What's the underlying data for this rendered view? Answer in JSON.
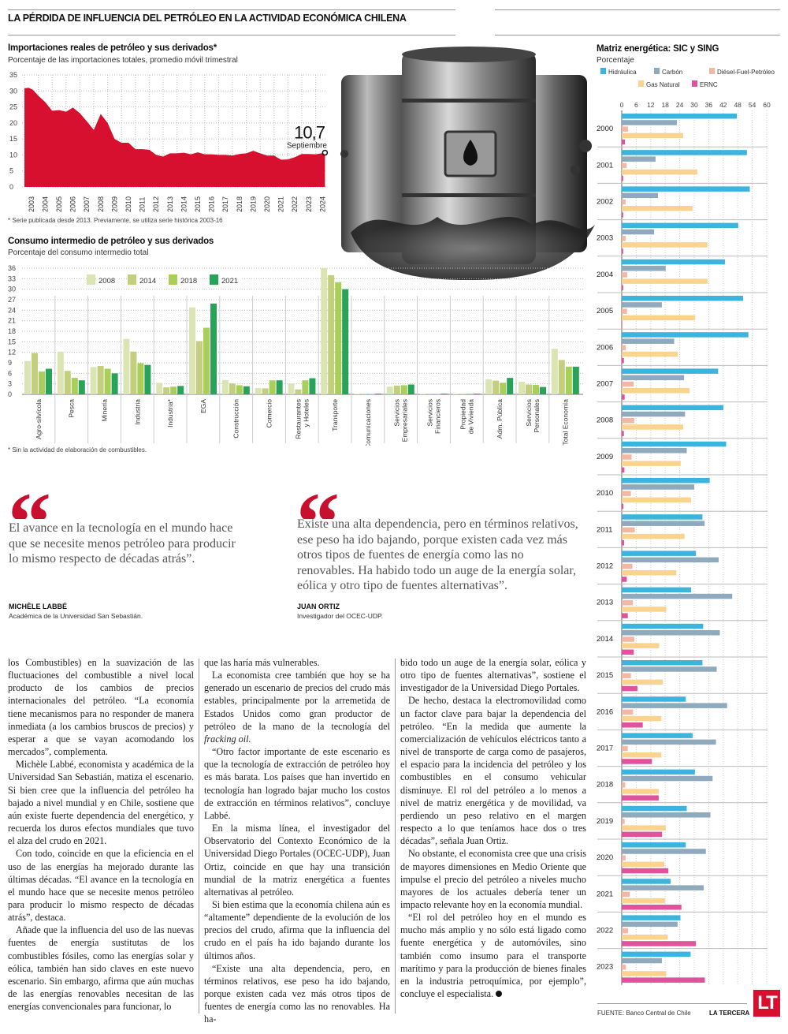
{
  "headline": "LA PÉRDIDA DE INFLUENCIA DEL PETRÓLEO EN LA ACTIVIDAD ECONÓMICA CHILENA",
  "colors": {
    "red": "#d7102f",
    "green2008": "#dbe5b3",
    "green2014": "#c3cf7c",
    "green2018": "#a9cf5a",
    "green2021": "#2aa35a",
    "hidraulica": "#3bb4de",
    "carbon": "#8fa9bd",
    "diesel": "#f3b7a5",
    "gas": "#fad38f",
    "ernc": "#e0529b"
  },
  "chart_data": [
    {
      "type": "area",
      "title": "Importaciones reales de petróleo y sus derivados*",
      "subtitle": "Porcentaje de las importaciones totales, promedio móvil trimestral",
      "ylim": [
        0,
        35
      ],
      "yticks": [
        "0",
        "5",
        "10",
        "15",
        "20",
        "25",
        "30",
        "35"
      ],
      "xticks": [
        "2003",
        "2004",
        "2005",
        "2006",
        "2007",
        "2008",
        "2009",
        "2010",
        "2011",
        "2012",
        "2013",
        "2014",
        "2015",
        "2016",
        "2017",
        "2018",
        "2019",
        "2020",
        "2021",
        "2022",
        "2023",
        "2024"
      ],
      "x": [
        2003.0,
        2003.3,
        2003.6,
        2004.0,
        2004.5,
        2005.0,
        2005.5,
        2006.0,
        2006.5,
        2007.0,
        2007.5,
        2008.0,
        2008.5,
        2009.0,
        2009.5,
        2010.0,
        2010.5,
        2011.0,
        2011.5,
        2012.0,
        2012.5,
        2013.0,
        2013.5,
        2014.0,
        2014.5,
        2015.0,
        2015.5,
        2016.0,
        2016.5,
        2017.0,
        2017.5,
        2018.0,
        2018.5,
        2019.0,
        2019.5,
        2020.0,
        2020.5,
        2021.0,
        2021.5,
        2022.0,
        2022.5,
        2023.0,
        2023.5,
        2024.0,
        2024.67
      ],
      "values": [
        30.8,
        31.0,
        30.4,
        28.5,
        26.5,
        23.8,
        24.0,
        23.5,
        24.8,
        23.0,
        20.5,
        17.8,
        22.8,
        20.0,
        15.0,
        13.8,
        13.8,
        11.8,
        11.8,
        11.6,
        10.0,
        9.5,
        10.5,
        10.5,
        10.7,
        10.2,
        10.8,
        10.2,
        10.2,
        10.0,
        10.0,
        9.8,
        10.3,
        10.5,
        11.3,
        10.5,
        9.8,
        9.8,
        8.5,
        8.6,
        9.3,
        10.3,
        10.3,
        10.2,
        10.7
      ],
      "annotation": {
        "value": "10,7",
        "label": "Septiembre"
      },
      "footnote": "* Serie publicada desde 2013. Previamente, se utiliza serie histórica 2003-16"
    },
    {
      "type": "bar",
      "title": "Consumo intermedio de petróleo y sus derivados",
      "subtitle": "Porcentaje del consumo intermedio total",
      "ylim": [
        0,
        36
      ],
      "yticks": [
        "0",
        "3",
        "6",
        "9",
        "12",
        "15",
        "18",
        "21",
        "24",
        "27",
        "30",
        "33",
        "36"
      ],
      "categories": [
        "Agro-silvícola",
        "Pesca",
        "Minería",
        "Industria",
        "Industria*",
        "EGA",
        "Construcción",
        "Comercio",
        "Restaurantes\ny Hoteles",
        "Transporte",
        "Comunicaciones",
        "Servicios\nEmpresariales",
        "Servicios\nFinancieros",
        "Propiedad\nde Vivienda",
        "Adm. Pública",
        "Servicios\nPersonales",
        "Total Economía"
      ],
      "series": [
        {
          "name": "2008",
          "values": [
            9.5,
            12.2,
            7.8,
            15.8,
            3.3,
            24.8,
            4.1,
            1.8,
            3.1,
            36,
            0.1,
            2.2,
            0.1,
            0.1,
            4.3,
            3.6,
            13
          ]
        },
        {
          "name": "2014",
          "values": [
            11.8,
            6.7,
            8.1,
            12.2,
            2.0,
            15.2,
            3.1,
            1.7,
            1.4,
            34,
            0.1,
            2.5,
            0.1,
            0.1,
            3.9,
            2.8,
            9.8
          ]
        },
        {
          "name": "2018",
          "values": [
            6.5,
            4.7,
            7.3,
            8.9,
            2.2,
            19.0,
            2.6,
            4.0,
            4.0,
            32,
            0.1,
            2.6,
            0.1,
            0.2,
            3.3,
            2.7,
            7.9
          ]
        },
        {
          "name": "2021",
          "values": [
            7.3,
            4.0,
            6.0,
            8.4,
            2.4,
            25.9,
            2.3,
            4.0,
            4.6,
            30,
            0.2,
            2.8,
            0.2,
            0.2,
            4.7,
            2.1,
            7.9
          ]
        }
      ],
      "footnote": "* Sin la actividad de elaboración de combustibles."
    },
    {
      "type": "bar",
      "orientation": "horizontal",
      "title": "Matriz energética: SIC y SING",
      "subtitle": "Porcentaje",
      "xlim": [
        0,
        60
      ],
      "xticks": [
        "0",
        "6",
        "12",
        "18",
        "24",
        "30",
        "36",
        "42",
        "48",
        "54",
        "60"
      ],
      "categories": [
        "2000",
        "2001",
        "2002",
        "2003",
        "2004",
        "2005",
        "2006",
        "2007",
        "2008",
        "2009",
        "2010",
        "2011",
        "2012",
        "2013",
        "2014",
        "2015",
        "2016",
        "2017",
        "2018",
        "2019",
        "2020",
        "2021",
        "2022",
        "2023"
      ],
      "series": [
        {
          "name": "Hidráulica",
          "values": [
            47.6,
            51.8,
            53,
            48.2,
            42.7,
            50.2,
            52.4,
            39.9,
            42.1,
            43.2,
            36.4,
            33.4,
            30.7,
            28.7,
            33.7,
            33.4,
            26.5,
            29.3,
            30.3,
            26.9,
            26.5,
            20.2,
            24.3,
            28.5
          ]
        },
        {
          "name": "Carbón",
          "values": [
            22.8,
            14,
            15,
            13.4,
            18.2,
            16.6,
            21.7,
            25.8,
            26.2,
            26.9,
            30,
            34.3,
            40.1,
            45.7,
            40.6,
            39.3,
            43.6,
            39,
            37.6,
            36.7,
            34.8,
            33.9,
            23.1,
            16.6
          ]
        },
        {
          "name": "Diésel-Fuel-Petróleo",
          "values": [
            2.6,
            2,
            1.6,
            1.6,
            2.3,
            2.2,
            1.7,
            4.9,
            5.2,
            4.1,
            3.8,
            5.4,
            4.4,
            4.6,
            5.2,
            3.8,
            4.7,
            2.5,
            1.4,
            1.2,
            1.6,
            3.3,
            2.6,
            1.7
          ]
        },
        {
          "name": "Gas Natural",
          "values": [
            25.4,
            31.3,
            29.3,
            35.5,
            35.5,
            30.4,
            23.2,
            28.1,
            25.4,
            24.4,
            28.7,
            26,
            22.6,
            18.4,
            15.5,
            17,
            16.4,
            16.4,
            15.3,
            18.2,
            17.6,
            17.9,
            19,
            18.4
          ]
        },
        {
          "name": "ERNC",
          "values": [
            1.3,
            0.6,
            0.6,
            0.6,
            0.6,
            0.2,
            0.9,
            1.2,
            0.9,
            1.1,
            0.7,
            1,
            2.1,
            2.5,
            5,
            6.5,
            8.7,
            12.5,
            15.3,
            16.7,
            19.3,
            24.7,
            30.7,
            34.4
          ]
        }
      ]
    }
  ],
  "quotes": [
    {
      "text": "El avance en la tecnología en el mundo hace que se necesite menos petróleo para producir lo mismo respecto de décadas atrás”.",
      "name": "MICHÈLE LABBÉ",
      "role": "Académica de la Universidad San Sebastián."
    },
    {
      "text": "Existe una alta dependencia, pero en términos relativos, ese peso ha ido bajando, porque existen cada vez más otros tipos de fuentes de energía como las no renovables. Ha habido todo un auge de la energía solar, eólica y otro tipo de fuentes alternativas”.",
      "name": "JUAN ORTIZ",
      "role": "Investigador del OCEC-UDP."
    }
  ],
  "article": {
    "col1": [
      "los Combustibles) en la suavización de las fluctuaciones del combustible a nivel local producto de los cambios de precios internacionales del petróleo. “La economía tiene mecanismos para no responder de manera inmediata (a los cambios bruscos de precios) y esperar a que se vayan acomodando los mercados”, complementa.",
      "Michèle Labbé, economista y académica de la Universidad San Sebastián, matiza el escenario. Si bien cree que la influencia del petróleo ha bajado a nivel mundial y en Chile, sostiene que aún existe fuerte dependencia del energético, y recuerda los duros efectos mundiales que tuvo el alza del crudo en 2021.",
      "Con todo, coincide en que la eficiencia en el uso de las energías ha mejorado durante las últimas décadas. “El avance en la tecnología en el mundo hace que se necesite menos petróleo para producir lo mismo respecto de décadas atrás”, destaca.",
      "Añade que la influencia del uso de las nuevas fuentes de energía sustitutas de los combustibles fósiles, como las energías solar y eólica, también han sido claves en este nuevo escenario. Sin embargo, afirma que aún muchas de las energías renovables necesitan de las energías convencionales para funcionar, lo"
    ],
    "col2": [
      "que las haría más vulnerables.",
      "La economista cree también que hoy se ha generado un escenario de precios del crudo más estables, principalmente por la arremetida de Estados Unidos como gran productor de petróleo de la mano de la tecnología del",
      "fracking oil.",
      "“Otro factor importante de este escenario es que la tecnología de extracción de petróleo hoy es más barata. Los países que han invertido en tecnología han logrado bajar mucho los costos de extracción en términos relativos”, concluye Labbé.",
      "En la misma línea, el investigador del Observatorio del Contexto Económico de la Universidad Diego Portales (OCEC-UDP), Juan Ortiz, coincide en que hay una transición mundial de la matriz energética a fuentes alternativas al petróleo.",
      "Si bien estima que la economía chilena aún es “altamente” dependiente de la evolución de los precios del crudo, afirma que la influencia del crudo en el país ha ido bajando durante los últimos años.",
      "“Existe una alta dependencia, pero, en términos relativos, ese peso ha ido bajando, porque existen cada vez más otros tipos de fuentes de energía como las no renovables. Ha ha-"
    ],
    "col3": [
      "bido todo un auge de la energía solar, eólica y otro tipo de fuentes alternativas”, sostiene el investigador de la Universidad Diego Portales.",
      "De hecho, destaca la electromovilidad como un factor clave para bajar la dependencia del petróleo. “En la medida que aumente la comercialización de vehículos eléctricos tanto a nivel de transporte de carga como de pasajeros, el espacio para la incidencia del petróleo y los combustibles en el consumo vehicular disminuye. El rol del petróleo a lo menos a nivel de matriz energética y de movilidad, va perdiendo un peso relativo en el margen respecto a lo que teníamos hace dos o tres décadas”, señala Juan Ortiz.",
      "No obstante, el economista cree que una crisis de mayores dimensiones en Medio Oriente que impulse el precio del petróleo a niveles mucho mayores de los actuales debería tener un impacto relevante hoy en la economía mundial.",
      "“El rol del petróleo hoy en el mundo es mucho más amplio y no sólo está ligado como fuente energética y de automóviles, sino también como insumo para el transporte marítimo y para la producción de bienes finales en la industria petroquímica, por ejemplo”, concluye el especialista."
    ]
  },
  "footer": {
    "source": "FUENTE: Banco Central de Chile",
    "brand": "LA TERCERA",
    "logo": "LT"
  }
}
